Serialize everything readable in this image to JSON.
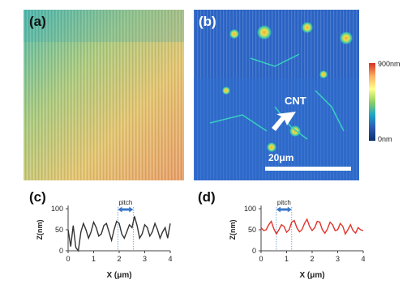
{
  "panels": {
    "a": {
      "letter": "(a)"
    },
    "b": {
      "letter": "(b)",
      "annotation": "CNT",
      "scalebar_label": "20μm"
    },
    "c": {
      "letter": "(c)"
    },
    "d": {
      "letter": "(d)"
    }
  },
  "colorbar": {
    "max_label": "900nm",
    "min_label": "0nm",
    "colors": [
      "#d7301f",
      "#fdae61",
      "#ffff8c",
      "#91cf60",
      "#1aa7c5",
      "#2c57b3",
      "#08306b"
    ]
  },
  "chart_data": [
    {
      "type": "line",
      "panel": "(c)",
      "xlabel": "X (μm)",
      "ylabel": "Z(nm)",
      "xticks": [
        "0",
        "1",
        "2",
        "3",
        "4"
      ],
      "yticks": [
        "0",
        "50",
        "100"
      ],
      "xlim": [
        0,
        4
      ],
      "ylim": [
        0,
        100
      ],
      "annotation": "pitch",
      "pitch_markers": [
        1.95,
        2.55
      ],
      "line_color": "#333333",
      "series": [
        {
          "x": [
            0,
            0.1,
            0.2,
            0.3,
            0.4,
            0.5,
            0.6,
            0.7,
            0.8,
            0.9,
            1.0,
            1.1,
            1.2,
            1.3,
            1.4,
            1.5,
            1.6,
            1.7,
            1.8,
            1.9,
            2.0,
            2.1,
            2.2,
            2.3,
            2.4,
            2.5,
            2.6,
            2.7,
            2.8,
            2.9,
            3.0,
            3.1,
            3.2,
            3.3,
            3.4,
            3.5,
            3.6,
            3.7,
            3.8,
            3.9,
            4.0
          ],
          "y": [
            50,
            10,
            60,
            8,
            0,
            45,
            65,
            50,
            30,
            45,
            68,
            55,
            35,
            40,
            60,
            65,
            45,
            25,
            50,
            70,
            65,
            40,
            30,
            45,
            62,
            55,
            82,
            60,
            30,
            40,
            62,
            55,
            35,
            45,
            65,
            50,
            30,
            45,
            55,
            30,
            65
          ]
        }
      ]
    },
    {
      "type": "line",
      "panel": "(d)",
      "xlabel": "X (μm)",
      "ylabel": "Z(nm)",
      "xticks": [
        "0",
        "1",
        "2",
        "3",
        "4"
      ],
      "yticks": [
        "0",
        "50",
        "100"
      ],
      "xlim": [
        0,
        4
      ],
      "ylim": [
        0,
        100
      ],
      "annotation": "pitch",
      "pitch_markers": [
        0.6,
        1.2
      ],
      "line_color": "#e0342b",
      "series": [
        {
          "x": [
            0,
            0.1,
            0.2,
            0.3,
            0.4,
            0.5,
            0.6,
            0.7,
            0.8,
            0.9,
            1.0,
            1.1,
            1.2,
            1.3,
            1.4,
            1.5,
            1.6,
            1.7,
            1.8,
            1.9,
            2.0,
            2.1,
            2.2,
            2.3,
            2.4,
            2.5,
            2.6,
            2.7,
            2.8,
            2.9,
            3.0,
            3.1,
            3.2,
            3.3,
            3.4,
            3.5,
            3.6,
            3.7,
            3.8,
            3.9,
            4.0
          ],
          "y": [
            55,
            48,
            50,
            62,
            70,
            52,
            40,
            50,
            62,
            58,
            44,
            50,
            68,
            72,
            55,
            45,
            50,
            65,
            75,
            58,
            48,
            55,
            70,
            68,
            50,
            42,
            52,
            68,
            62,
            48,
            50,
            65,
            58,
            40,
            50,
            62,
            48,
            42,
            55,
            50,
            48
          ]
        }
      ]
    }
  ]
}
